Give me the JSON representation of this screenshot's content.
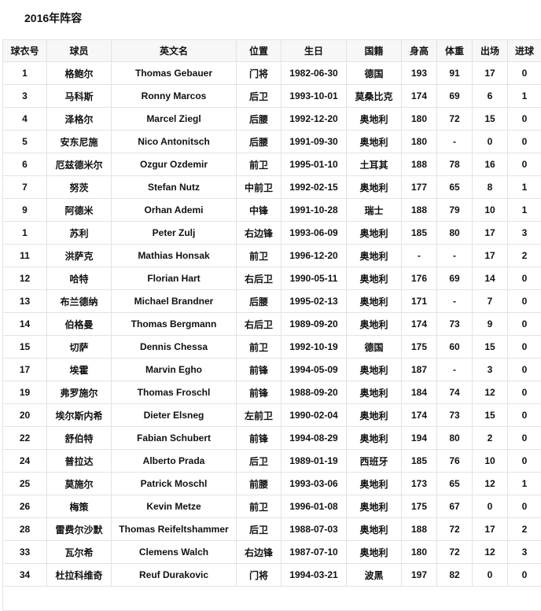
{
  "title": "2016年阵容",
  "headers": [
    "球衣号",
    "球员",
    "英文名",
    "位置",
    "生日",
    "国籍",
    "身高",
    "体重",
    "出场",
    "进球"
  ],
  "rows": [
    [
      "1",
      "格鲍尔",
      "Thomas Gebauer",
      "门将",
      "1982-06-30",
      "德国",
      "193",
      "91",
      "17",
      "0"
    ],
    [
      "3",
      "马科斯",
      "Ronny Marcos",
      "后卫",
      "1993-10-01",
      "莫桑比克",
      "174",
      "69",
      "6",
      "1"
    ],
    [
      "4",
      "泽格尔",
      "Marcel Ziegl",
      "后腰",
      "1992-12-20",
      "奥地利",
      "180",
      "72",
      "15",
      "0"
    ],
    [
      "5",
      "安东尼施",
      "Nico Antonitsch",
      "后腰",
      "1991-09-30",
      "奥地利",
      "180",
      "-",
      "0",
      "0"
    ],
    [
      "6",
      "厄兹德米尔",
      "Ozgur Ozdemir",
      "前卫",
      "1995-01-10",
      "土耳其",
      "188",
      "78",
      "16",
      "0"
    ],
    [
      "7",
      "努茨",
      "Stefan Nutz",
      "中前卫",
      "1992-02-15",
      "奥地利",
      "177",
      "65",
      "8",
      "1"
    ],
    [
      "9",
      "阿德米",
      "Orhan Ademi",
      "中锋",
      "1991-10-28",
      "瑞士",
      "188",
      "79",
      "10",
      "1"
    ],
    [
      "1",
      "苏利",
      "Peter Zulj",
      "右边锋",
      "1993-06-09",
      "奥地利",
      "185",
      "80",
      "17",
      "3"
    ],
    [
      "11",
      "洪萨克",
      "Mathias Honsak",
      "前卫",
      "1996-12-20",
      "奥地利",
      "-",
      "-",
      "17",
      "2"
    ],
    [
      "12",
      "哈特",
      "Florian Hart",
      "右后卫",
      "1990-05-11",
      "奥地利",
      "176",
      "69",
      "14",
      "0"
    ],
    [
      "13",
      "布兰德纳",
      "Michael Brandner",
      "后腰",
      "1995-02-13",
      "奥地利",
      "171",
      "-",
      "7",
      "0"
    ],
    [
      "14",
      "伯格曼",
      "Thomas Bergmann",
      "右后卫",
      "1989-09-20",
      "奥地利",
      "174",
      "73",
      "9",
      "0"
    ],
    [
      "15",
      "切萨",
      "Dennis Chessa",
      "前卫",
      "1992-10-19",
      "德国",
      "175",
      "60",
      "15",
      "0"
    ],
    [
      "17",
      "埃霍",
      "Marvin Egho",
      "前锋",
      "1994-05-09",
      "奥地利",
      "187",
      "-",
      "3",
      "0"
    ],
    [
      "19",
      "弗罗施尔",
      "Thomas Froschl",
      "前锋",
      "1988-09-20",
      "奥地利",
      "184",
      "74",
      "12",
      "0"
    ],
    [
      "20",
      "埃尔斯内希",
      "Dieter Elsneg",
      "左前卫",
      "1990-02-04",
      "奥地利",
      "174",
      "73",
      "15",
      "0"
    ],
    [
      "22",
      "舒伯特",
      "Fabian Schubert",
      "前锋",
      "1994-08-29",
      "奥地利",
      "194",
      "80",
      "2",
      "0"
    ],
    [
      "24",
      "普拉达",
      "Alberto Prada",
      "后卫",
      "1989-01-19",
      "西班牙",
      "185",
      "76",
      "10",
      "0"
    ],
    [
      "25",
      "莫施尔",
      "Patrick Moschl",
      "前腰",
      "1993-03-06",
      "奥地利",
      "173",
      "65",
      "12",
      "1"
    ],
    [
      "26",
      "梅策",
      "Kevin Metze",
      "前卫",
      "1996-01-08",
      "奥地利",
      "175",
      "67",
      "0",
      "0"
    ],
    [
      "28",
      "雷费尔沙默",
      "Thomas Reifeltshammer",
      "后卫",
      "1988-07-03",
      "奥地利",
      "188",
      "72",
      "17",
      "2"
    ],
    [
      "33",
      "瓦尔希",
      "Clemens Walch",
      "右边锋",
      "1987-07-10",
      "奥地利",
      "180",
      "72",
      "12",
      "3"
    ],
    [
      "34",
      "杜拉科维奇",
      "Reuf Durakovic",
      "门将",
      "1994-03-21",
      "波黑",
      "197",
      "82",
      "0",
      "0"
    ]
  ]
}
